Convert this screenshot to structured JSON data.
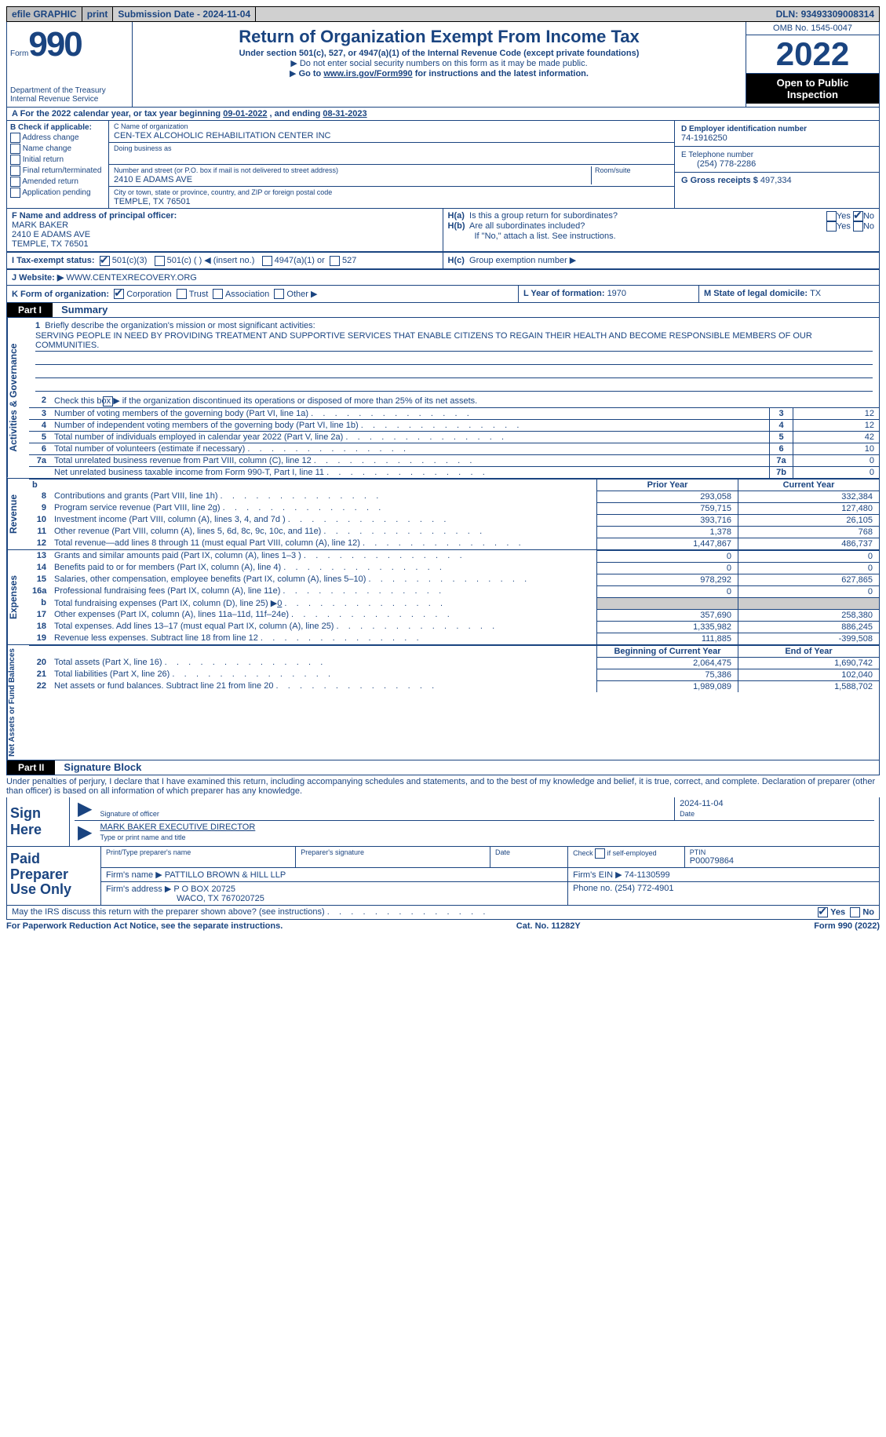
{
  "topbar": {
    "efile": "efile GRAPHIC",
    "print": "print",
    "subdate_label": "Submission Date - ",
    "subdate": "2024-11-04",
    "dln_label": "DLN: ",
    "dln": "93493309008314"
  },
  "header": {
    "form_word": "Form",
    "form_num": "990",
    "dept": "Department of the Treasury",
    "irs": "Internal Revenue Service",
    "title": "Return of Organization Exempt From Income Tax",
    "sub": "Under section 501(c), 527, or 4947(a)(1) of the Internal Revenue Code (except private foundations)",
    "note1": "Do not enter social security numbers on this form as it may be made public.",
    "note2_a": "Go to ",
    "note2_link": "www.irs.gov/Form990",
    "note2_b": " for instructions and the latest information.",
    "omb": "OMB No. 1545-0047",
    "year": "2022",
    "otp1": "Open to Public",
    "otp2": "Inspection"
  },
  "a": {
    "prefix": "A For the 2022 calendar year, or tax year beginning ",
    "begin": "09-01-2022",
    "mid": " , and ending ",
    "end": "08-31-2023"
  },
  "b": {
    "label": "B Check if applicable:",
    "items": [
      "Address change",
      "Name change",
      "Initial return",
      "Final return/terminated",
      "Amended return",
      "Application pending"
    ]
  },
  "c": {
    "name_label": "C Name of organization",
    "name": "CEN-TEX ALCOHOLIC REHABILITATION CENTER INC",
    "dba_label": "Doing business as",
    "dba": "",
    "street_label": "Number and street (or P.O. box if mail is not delivered to street address)",
    "room_label": "Room/suite",
    "street": "2410 E ADAMS AVE",
    "city_label": "City or town, state or province, country, and ZIP or foreign postal code",
    "city": "TEMPLE, TX  76501"
  },
  "d": {
    "label": "D Employer identification number",
    "val": "74-1916250"
  },
  "e": {
    "label": "E Telephone number",
    "val": "(254) 778-2286"
  },
  "g": {
    "label": "G Gross receipts $ ",
    "val": "497,334"
  },
  "f": {
    "label": "F Name and address of principal officer:",
    "name": "MARK BAKER",
    "addr1": "2410 E ADAMS AVE",
    "addr2": "TEMPLE, TX  76501"
  },
  "h": {
    "a": "Is this a group return for subordinates?",
    "b": "Are all subordinates included?",
    "bnote": "If \"No,\" attach a list. See instructions.",
    "c": "Group exemption number ▶",
    "yes": "Yes",
    "no": "No"
  },
  "i": {
    "label": "I   Tax-exempt status:",
    "o1": "501(c)(3)",
    "o2": "501(c) (  ) ◀ (insert no.)",
    "o3": "4947(a)(1) or",
    "o4": "527"
  },
  "j": {
    "label": "J   Website: ▶ ",
    "val": "WWW.CENTEXRECOVERY.ORG"
  },
  "k": {
    "label": "K Form of organization:",
    "o1": "Corporation",
    "o2": "Trust",
    "o3": "Association",
    "o4": "Other ▶"
  },
  "l": {
    "label": "L Year of formation: ",
    "val": "1970"
  },
  "m": {
    "label": "M State of legal domicile: ",
    "val": "TX"
  },
  "parts": {
    "p1": "Part I",
    "p1t": "Summary",
    "p2": "Part II",
    "p2t": "Signature Block"
  },
  "summary": {
    "s1_label": "Activities & Governance",
    "l1a": "Briefly describe the organization's mission or most significant activities:",
    "l1b": "SERVING PEOPLE IN NEED BY PROVIDING TREATMENT AND SUPPORTIVE SERVICES THAT ENABLE CITIZENS TO REGAIN THEIR HEALTH AND BECOME RESPONSIBLE MEMBERS OF OUR COMMUNITIES.",
    "l2": "Check this box ▶       if the organization discontinued its operations or disposed of more than 25% of its net assets.",
    "rows_ag": [
      {
        "n": "3",
        "d": "Number of voting members of the governing body (Part VI, line 1a)",
        "box": "3",
        "v": "12"
      },
      {
        "n": "4",
        "d": "Number of independent voting members of the governing body (Part VI, line 1b)",
        "box": "4",
        "v": "12"
      },
      {
        "n": "5",
        "d": "Total number of individuals employed in calendar year 2022 (Part V, line 2a)",
        "box": "5",
        "v": "42"
      },
      {
        "n": "6",
        "d": "Total number of volunteers (estimate if necessary)",
        "box": "6",
        "v": "10"
      },
      {
        "n": "7a",
        "d": "Total unrelated business revenue from Part VIII, column (C), line 12",
        "box": "7a",
        "v": "0"
      },
      {
        "n": "",
        "d": "Net unrelated business taxable income from Form 990-T, Part I, line 11",
        "box": "7b",
        "v": "0"
      }
    ],
    "s2_label": "Revenue",
    "col_py": "Prior Year",
    "col_cy": "Current Year",
    "rows_rev": [
      {
        "n": "8",
        "d": "Contributions and grants (Part VIII, line 1h)",
        "py": "293,058",
        "cy": "332,384"
      },
      {
        "n": "9",
        "d": "Program service revenue (Part VIII, line 2g)",
        "py": "759,715",
        "cy": "127,480"
      },
      {
        "n": "10",
        "d": "Investment income (Part VIII, column (A), lines 3, 4, and 7d )",
        "py": "393,716",
        "cy": "26,105"
      },
      {
        "n": "11",
        "d": "Other revenue (Part VIII, column (A), lines 5, 6d, 8c, 9c, 10c, and 11e)",
        "py": "1,378",
        "cy": "768"
      },
      {
        "n": "12",
        "d": "Total revenue—add lines 8 through 11 (must equal Part VIII, column (A), line 12)",
        "py": "1,447,867",
        "cy": "486,737"
      }
    ],
    "s3_label": "Expenses",
    "rows_exp": [
      {
        "n": "13",
        "d": "Grants and similar amounts paid (Part IX, column (A), lines 1–3 )",
        "py": "0",
        "cy": "0"
      },
      {
        "n": "14",
        "d": "Benefits paid to or for members (Part IX, column (A), line 4)",
        "py": "0",
        "cy": "0"
      },
      {
        "n": "15",
        "d": "Salaries, other compensation, employee benefits (Part IX, column (A), lines 5–10)",
        "py": "978,292",
        "cy": "627,865"
      },
      {
        "n": "16a",
        "d": "Professional fundraising fees (Part IX, column (A), line 11e)",
        "py": "0",
        "cy": "0"
      },
      {
        "n": "b",
        "d": "Total fundraising expenses (Part IX, column (D), line 25) ▶",
        "py": "grey",
        "cy": "grey",
        "extra": "0"
      },
      {
        "n": "17",
        "d": "Other expenses (Part IX, column (A), lines 11a–11d, 11f–24e)",
        "py": "357,690",
        "cy": "258,380"
      },
      {
        "n": "18",
        "d": "Total expenses. Add lines 13–17 (must equal Part IX, column (A), line 25)",
        "py": "1,335,982",
        "cy": "886,245"
      },
      {
        "n": "19",
        "d": "Revenue less expenses. Subtract line 18 from line 12",
        "py": "111,885",
        "cy": "-399,508"
      }
    ],
    "s4_label": "Net Assets or Fund Balances",
    "col_boy": "Beginning of Current Year",
    "col_eoy": "End of Year",
    "rows_na": [
      {
        "n": "20",
        "d": "Total assets (Part X, line 16)",
        "py": "2,064,475",
        "cy": "1,690,742"
      },
      {
        "n": "21",
        "d": "Total liabilities (Part X, line 26)",
        "py": "75,386",
        "cy": "102,040"
      },
      {
        "n": "22",
        "d": "Net assets or fund balances. Subtract line 21 from line 20",
        "py": "1,989,089",
        "cy": "1,588,702"
      }
    ]
  },
  "penalty": "Under penalties of perjury, I declare that I have examined this return, including accompanying schedules and statements, and to the best of my knowledge and belief, it is true, correct, and complete. Declaration of preparer (other than officer) is based on all information of which preparer has any knowledge.",
  "sign": {
    "left": "Sign Here",
    "sig_label": "Signature of officer",
    "date_label": "Date",
    "date": "2024-11-04",
    "name": "MARK BAKER EXECUTIVE DIRECTOR",
    "name_label": "Type or print name and title"
  },
  "prep": {
    "left": "Paid Preparer Use Only",
    "c1": "Print/Type preparer's name",
    "c2": "Preparer's signature",
    "c3": "Date",
    "c4a": "Check",
    "c4b": "if self-employed",
    "c5l": "PTIN",
    "c5": "P00079864",
    "firm_l": "Firm's name    ▶ ",
    "firm": "PATTILLO BROWN & HILL LLP",
    "ein_l": "Firm's EIN ▶ ",
    "ein": "74-1130599",
    "addr_l": "Firm's address ▶ ",
    "addr1": "P O BOX 20725",
    "addr2": "WACO, TX  767020725",
    "phone_l": "Phone no. ",
    "phone": "(254) 772-4901"
  },
  "discuss": {
    "q": "May the IRS discuss this return with the preparer shown above? (see instructions)",
    "yes": "Yes",
    "no": "No"
  },
  "footer": {
    "l": "For Paperwork Reduction Act Notice, see the separate instructions.",
    "m": "Cat. No. 11282Y",
    "r": "Form 990 (2022)"
  },
  "n": {
    "1": "1",
    "2": "2",
    "b": "b",
    "Ha": "H(a)",
    "Hb": "H(b)",
    "Hc": "H(c)"
  }
}
